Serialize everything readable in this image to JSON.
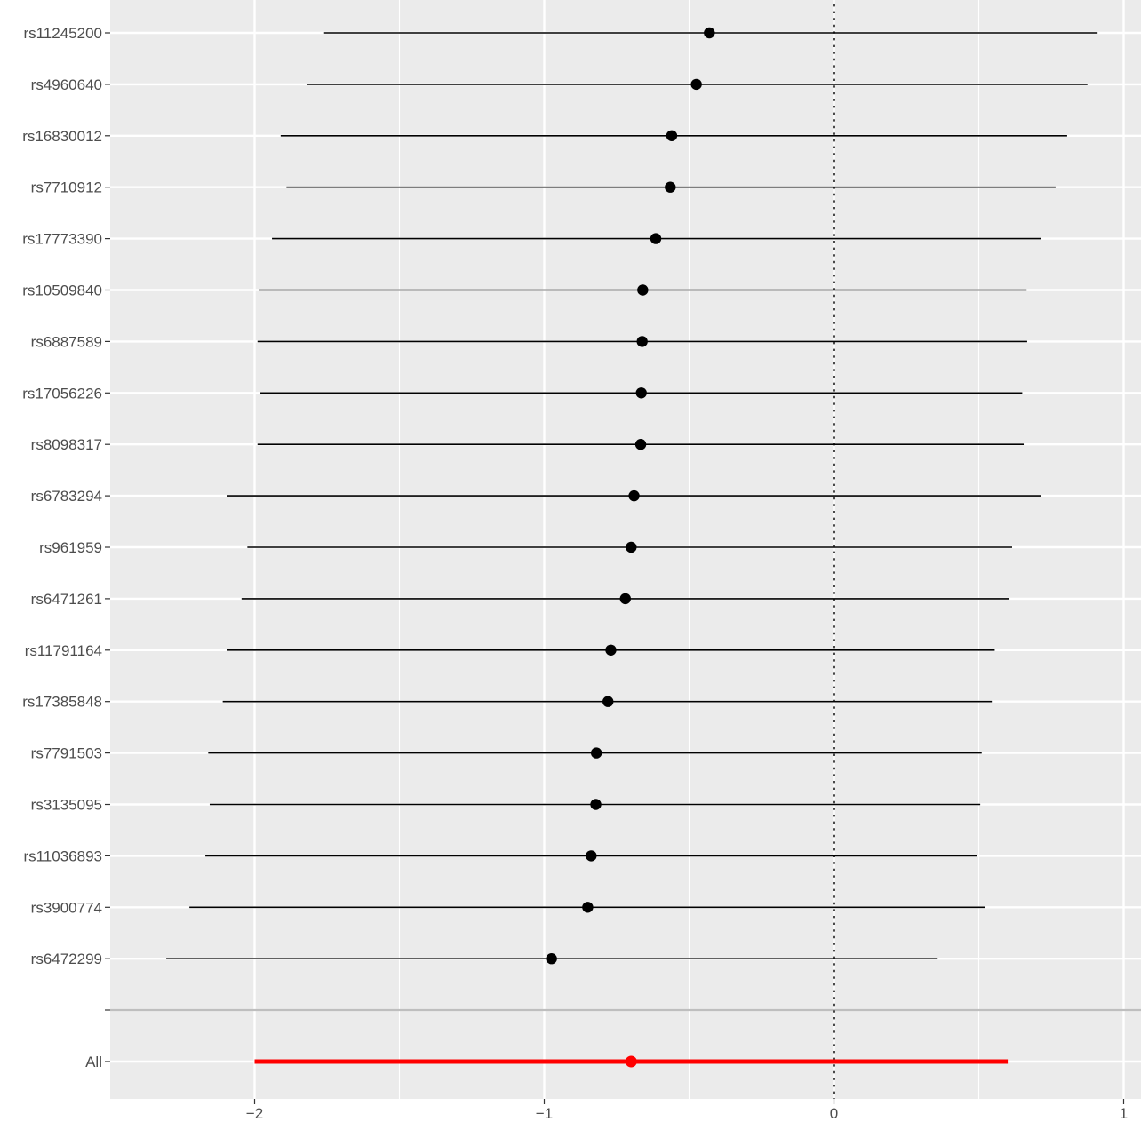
{
  "chart_data": {
    "type": "forest",
    "title": "",
    "xlabel": "",
    "ylabel": "",
    "xlim": [
      -2.48,
      1.03
    ],
    "x_ticks": [
      -2,
      -1,
      0,
      1
    ],
    "x_tick_labels": [
      "−2",
      "−1",
      "0",
      "1"
    ],
    "reference_line": {
      "x": 0,
      "style": "dotted",
      "color": "#000000"
    },
    "grid": true,
    "background": "#ebebeb",
    "series": [
      {
        "label": "rs11245200",
        "estimate": -0.43,
        "lower": -1.76,
        "upper": 0.91
      },
      {
        "label": "rs4960640",
        "estimate": -0.475,
        "lower": -1.82,
        "upper": 0.875
      },
      {
        "label": "rs16830012",
        "estimate": -0.56,
        "lower": -1.91,
        "upper": 0.805
      },
      {
        "label": "rs7710912",
        "estimate": -0.565,
        "lower": -1.89,
        "upper": 0.765
      },
      {
        "label": "rs17773390",
        "estimate": -0.615,
        "lower": -1.94,
        "upper": 0.715
      },
      {
        "label": "rs10509840",
        "estimate": -0.66,
        "lower": -1.985,
        "upper": 0.665
      },
      {
        "label": "rs6887589",
        "estimate": -0.662,
        "lower": -1.99,
        "upper": 0.667
      },
      {
        "label": "rs17056226",
        "estimate": -0.665,
        "lower": -1.98,
        "upper": 0.65
      },
      {
        "label": "rs8098317",
        "estimate": -0.667,
        "lower": -1.99,
        "upper": 0.655
      },
      {
        "label": "rs6783294",
        "estimate": -0.69,
        "lower": -2.095,
        "upper": 0.715
      },
      {
        "label": "rs961959",
        "estimate": -0.7,
        "lower": -2.025,
        "upper": 0.615
      },
      {
        "label": "rs6471261",
        "estimate": -0.72,
        "lower": -2.045,
        "upper": 0.605
      },
      {
        "label": "rs11791164",
        "estimate": -0.77,
        "lower": -2.095,
        "upper": 0.555
      },
      {
        "label": "rs17385848",
        "estimate": -0.78,
        "lower": -2.11,
        "upper": 0.545
      },
      {
        "label": "rs7791503",
        "estimate": -0.82,
        "lower": -2.16,
        "upper": 0.51
      },
      {
        "label": "rs3135095",
        "estimate": -0.822,
        "lower": -2.155,
        "upper": 0.505
      },
      {
        "label": "rs11036893",
        "estimate": -0.838,
        "lower": -2.17,
        "upper": 0.495
      },
      {
        "label": "rs3900774",
        "estimate": -0.85,
        "lower": -2.225,
        "upper": 0.52
      },
      {
        "label": "rs6472299",
        "estimate": -0.975,
        "lower": -2.305,
        "upper": 0.355
      }
    ],
    "summary": {
      "label": "All",
      "estimate": -0.7,
      "lower": -2.0,
      "upper": 0.6,
      "color": "#ff0000"
    }
  }
}
